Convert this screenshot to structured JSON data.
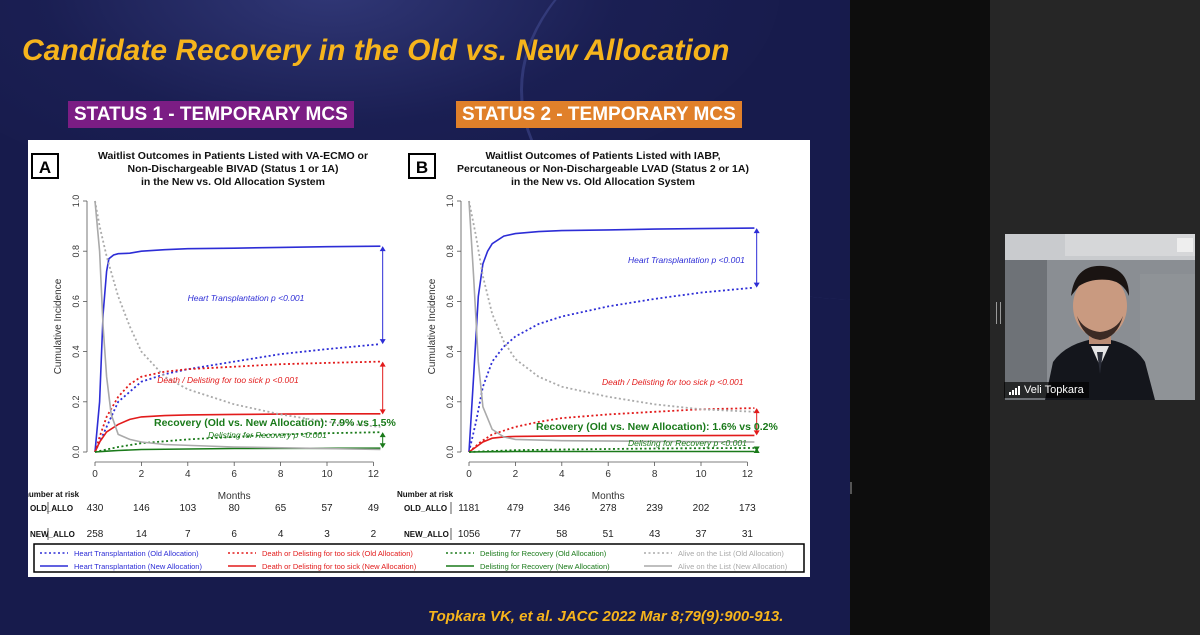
{
  "slide": {
    "title": "Candidate Recovery in the Old vs. New Allocation",
    "status1_label": "STATUS 1  - TEMPORARY MCS",
    "status2_label": "STATUS 2  - TEMPORARY MCS",
    "citation": "Topkara VK, et al. JACC 2022 Mar 8;79(9):900-913.",
    "colors": {
      "background": "#171b4c",
      "title": "#f6b41c",
      "status1_bg": "#7b1d84",
      "status2_bg": "#e0802a"
    }
  },
  "legend": [
    {
      "label": "Heart Transplantation (Old Allocation)",
      "color": "#2d2dd6",
      "style": "dotted"
    },
    {
      "label": "Heart Transplantation (New Allocation)",
      "color": "#2d2dd6",
      "style": "solid"
    },
    {
      "label": "Death or Delisting for too sick (Old Allocation)",
      "color": "#e21b1b",
      "style": "dotted"
    },
    {
      "label": "Death or Delisting for too sick (New Allocation)",
      "color": "#e21b1b",
      "style": "solid"
    },
    {
      "label": "Delisting for Recovery (Old Allocation)",
      "color": "#1a7a1a",
      "style": "dotted"
    },
    {
      "label": "Delisting for Recovery (New Allocation)",
      "color": "#1a7a1a",
      "style": "solid"
    },
    {
      "label": "Alive on the List (Old Allocation)",
      "color": "#aaaaaa",
      "style": "dotted"
    },
    {
      "label": "Alive on the List (New Allocation)",
      "color": "#aaaaaa",
      "style": "solid"
    }
  ],
  "chart_data": [
    {
      "type": "line",
      "panel_letter": "A",
      "title": "Waitlist Outcomes in Patients Listed with VA-ECMO or Non-Dischargeable BIVAD (Status 1 or 1A) in the New vs. Old Allocation System",
      "title_lines": [
        "Waitlist Outcomes in Patients Listed with VA-ECMO or",
        "Non-Dischargeable BIVAD (Status 1 or 1A)",
        "in the New vs. Old Allocation System"
      ],
      "xlabel": "Months",
      "ylabel": "Cumulative Incidence",
      "xlim": [
        0,
        12.5
      ],
      "ylim": [
        0,
        1.0
      ],
      "x_ticks": [
        0,
        2,
        4,
        6,
        8,
        10,
        12
      ],
      "y_ticks": [
        0.0,
        0.2,
        0.4,
        0.6,
        0.8,
        1.0
      ],
      "y_tick_labels": [
        "0.0",
        "0.2",
        "0.4",
        "0.6",
        "0.8",
        "1.0"
      ],
      "series": [
        {
          "name": "Heart Transplantation (New Allocation)",
          "color": "#2d2dd6",
          "style": "solid",
          "x": [
            0,
            0.2,
            0.35,
            0.5,
            0.6,
            0.8,
            1,
            1.5,
            2,
            3,
            4,
            6,
            8,
            10,
            12.3
          ],
          "y": [
            0,
            0.2,
            0.55,
            0.72,
            0.77,
            0.785,
            0.79,
            0.792,
            0.8,
            0.806,
            0.81,
            0.812,
            0.815,
            0.818,
            0.82
          ]
        },
        {
          "name": "Heart Transplantation (Old Allocation)",
          "color": "#2d2dd6",
          "style": "dotted",
          "x": [
            0,
            0.2,
            0.5,
            1,
            2,
            3,
            4,
            6,
            8,
            10,
            12.3
          ],
          "y": [
            0,
            0.04,
            0.1,
            0.2,
            0.28,
            0.31,
            0.33,
            0.36,
            0.39,
            0.41,
            0.43
          ]
        },
        {
          "name": "Death or Delisting for too sick (Old Allocation)",
          "color": "#e21b1b",
          "style": "dotted",
          "x": [
            0,
            0.2,
            0.5,
            1,
            1.5,
            2,
            3,
            4,
            6,
            8,
            10,
            12.3
          ],
          "y": [
            0,
            0.06,
            0.14,
            0.22,
            0.27,
            0.3,
            0.32,
            0.33,
            0.34,
            0.35,
            0.355,
            0.36
          ]
        },
        {
          "name": "Death or Delisting for too sick (New Allocation)",
          "color": "#e21b1b",
          "style": "solid",
          "x": [
            0,
            0.2,
            0.5,
            1,
            1.5,
            2,
            3,
            4,
            6,
            8,
            10,
            12.3
          ],
          "y": [
            0,
            0.04,
            0.08,
            0.11,
            0.13,
            0.14,
            0.145,
            0.148,
            0.15,
            0.151,
            0.152,
            0.152
          ]
        },
        {
          "name": "Delisting for Recovery (Old Allocation)",
          "color": "#1a7a1a",
          "style": "dotted",
          "x": [
            0,
            0.5,
            1,
            2,
            4,
            6,
            8,
            10,
            12.3
          ],
          "y": [
            0,
            0.01,
            0.02,
            0.035,
            0.05,
            0.06,
            0.07,
            0.075,
            0.079
          ]
        },
        {
          "name": "Delisting for Recovery (New Allocation)",
          "color": "#1a7a1a",
          "style": "solid",
          "x": [
            0,
            0.5,
            1,
            2,
            4,
            6,
            12.3
          ],
          "y": [
            0,
            0.003,
            0.006,
            0.01,
            0.012,
            0.014,
            0.015
          ]
        },
        {
          "name": "Alive on the List (Old Allocation)",
          "color": "#aaaaaa",
          "style": "dotted",
          "x": [
            0,
            0.2,
            0.5,
            1,
            1.5,
            2,
            3,
            4,
            6,
            8,
            10,
            12.3
          ],
          "y": [
            1.0,
            0.9,
            0.78,
            0.62,
            0.5,
            0.4,
            0.3,
            0.25,
            0.19,
            0.15,
            0.12,
            0.1
          ]
        },
        {
          "name": "Alive on the List (New Allocation)",
          "color": "#aaaaaa",
          "style": "solid",
          "x": [
            0,
            0.2,
            0.35,
            0.5,
            0.7,
            1,
            1.5,
            2,
            3,
            6,
            12.3
          ],
          "y": [
            1.0,
            0.8,
            0.5,
            0.3,
            0.15,
            0.07,
            0.05,
            0.04,
            0.03,
            0.02,
            0.01
          ]
        }
      ],
      "annotations": [
        {
          "text": "Heart Transplantation p <0.001",
          "color": "#2d2dd6"
        },
        {
          "text": "Death / Delisting for too sick p <0.001",
          "color": "#e21b1b"
        },
        {
          "text": "Recovery (Old vs. New Allocation): 7.9% vs 1.5%",
          "color": "#1a7a1a"
        },
        {
          "text": "Delisting for Recovery p <0.001",
          "color": "#1a7a1a"
        }
      ],
      "risk_table": {
        "header": "number at risk",
        "rows": [
          {
            "label": "OLD_ALLO",
            "values": [
              430,
              146,
              103,
              80,
              65,
              57,
              49
            ]
          },
          {
            "label": "NEW_ALLO",
            "values": [
              258,
              14,
              7,
              6,
              4,
              3,
              2
            ]
          }
        ]
      }
    },
    {
      "type": "line",
      "panel_letter": "B",
      "title": "Waitlist Outcomes of Patients Listed with IABP, Percutaneous or Non-Dischargeable LVAD (Status 2 or 1A) in the New vs. Old Allocation System",
      "title_lines": [
        "Waitlist Outcomes of Patients Listed with IABP,",
        "Percutaneous or Non-Dischargeable LVAD (Status 2 or 1A)",
        "in the New vs. Old Allocation System"
      ],
      "xlabel": "Months",
      "ylabel": "Cumulative Incidence",
      "xlim": [
        0,
        12.5
      ],
      "ylim": [
        0,
        1.0
      ],
      "x_ticks": [
        0,
        2,
        4,
        6,
        8,
        10,
        12
      ],
      "y_ticks": [
        0.0,
        0.2,
        0.4,
        0.6,
        0.8,
        1.0
      ],
      "y_tick_labels": [
        "0.0",
        "0.2",
        "0.4",
        "0.6",
        "0.8",
        "1.0"
      ],
      "series": [
        {
          "name": "Heart Transplantation (New Allocation)",
          "color": "#2d2dd6",
          "style": "solid",
          "x": [
            0,
            0.2,
            0.4,
            0.6,
            0.8,
            1,
            1.5,
            2,
            3,
            4,
            6,
            8,
            10,
            12.3
          ],
          "y": [
            0,
            0.3,
            0.62,
            0.75,
            0.8,
            0.83,
            0.86,
            0.87,
            0.878,
            0.882,
            0.885,
            0.888,
            0.89,
            0.892
          ]
        },
        {
          "name": "Heart Transplantation (Old Allocation)",
          "color": "#2d2dd6",
          "style": "dotted",
          "x": [
            0,
            0.3,
            0.6,
            1,
            1.5,
            2,
            3,
            4,
            6,
            8,
            10,
            12.3
          ],
          "y": [
            0,
            0.12,
            0.26,
            0.36,
            0.42,
            0.46,
            0.51,
            0.54,
            0.58,
            0.61,
            0.635,
            0.655
          ]
        },
        {
          "name": "Death or Delisting for too sick (Old Allocation)",
          "color": "#e21b1b",
          "style": "dotted",
          "x": [
            0,
            0.5,
            1,
            2,
            3,
            4,
            6,
            8,
            10,
            12.3
          ],
          "y": [
            0,
            0.04,
            0.07,
            0.1,
            0.12,
            0.135,
            0.15,
            0.16,
            0.17,
            0.175
          ]
        },
        {
          "name": "Death or Delisting for too sick (New Allocation)",
          "color": "#e21b1b",
          "style": "solid",
          "x": [
            0,
            0.3,
            0.6,
            1,
            1.5,
            2,
            4,
            6,
            12.3
          ],
          "y": [
            0,
            0.02,
            0.04,
            0.055,
            0.06,
            0.062,
            0.064,
            0.065,
            0.066
          ]
        },
        {
          "name": "Delisting for Recovery (Old Allocation)",
          "color": "#1a7a1a",
          "style": "dotted",
          "x": [
            0,
            1,
            2,
            4,
            6,
            8,
            10,
            12.3
          ],
          "y": [
            0,
            0.004,
            0.007,
            0.01,
            0.012,
            0.014,
            0.015,
            0.016
          ]
        },
        {
          "name": "Delisting for Recovery (New Allocation)",
          "color": "#1a7a1a",
          "style": "solid",
          "x": [
            0,
            1,
            2,
            6,
            12.3
          ],
          "y": [
            0,
            0.001,
            0.002,
            0.002,
            0.002
          ]
        },
        {
          "name": "Alive on the List (Old Allocation)",
          "color": "#aaaaaa",
          "style": "dotted",
          "x": [
            0,
            0.3,
            0.6,
            1,
            1.5,
            2,
            3,
            4,
            6,
            8,
            10,
            12.3
          ],
          "y": [
            1.0,
            0.86,
            0.7,
            0.55,
            0.44,
            0.37,
            0.3,
            0.26,
            0.22,
            0.19,
            0.17,
            0.16
          ]
        },
        {
          "name": "Alive on the List (New Allocation)",
          "color": "#aaaaaa",
          "style": "solid",
          "x": [
            0,
            0.2,
            0.4,
            0.6,
            1,
            1.5,
            2,
            4,
            12.3
          ],
          "y": [
            1.0,
            0.7,
            0.36,
            0.18,
            0.09,
            0.06,
            0.05,
            0.045,
            0.04
          ]
        }
      ],
      "annotations": [
        {
          "text": "Heart Transplantation p <0.001",
          "color": "#2d2dd6"
        },
        {
          "text": "Death / Delisting for too sick p <0.001",
          "color": "#e21b1b"
        },
        {
          "text": "Recovery (Old vs. New Allocation): 1.6% vs 0.2%",
          "color": "#1a7a1a"
        },
        {
          "text": "Delisting for Recovery p <0.001",
          "color": "#1a7a1a"
        }
      ],
      "risk_table": {
        "header": "Number at risk",
        "rows": [
          {
            "label": "OLD_ALLO",
            "values": [
              1181,
              479,
              346,
              278,
              239,
              202,
              173
            ]
          },
          {
            "label": "NEW_ALLO",
            "values": [
              1056,
              77,
              58,
              51,
              43,
              37,
              31
            ]
          }
        ]
      }
    }
  ],
  "participant": {
    "name": "Veli Topkara"
  }
}
